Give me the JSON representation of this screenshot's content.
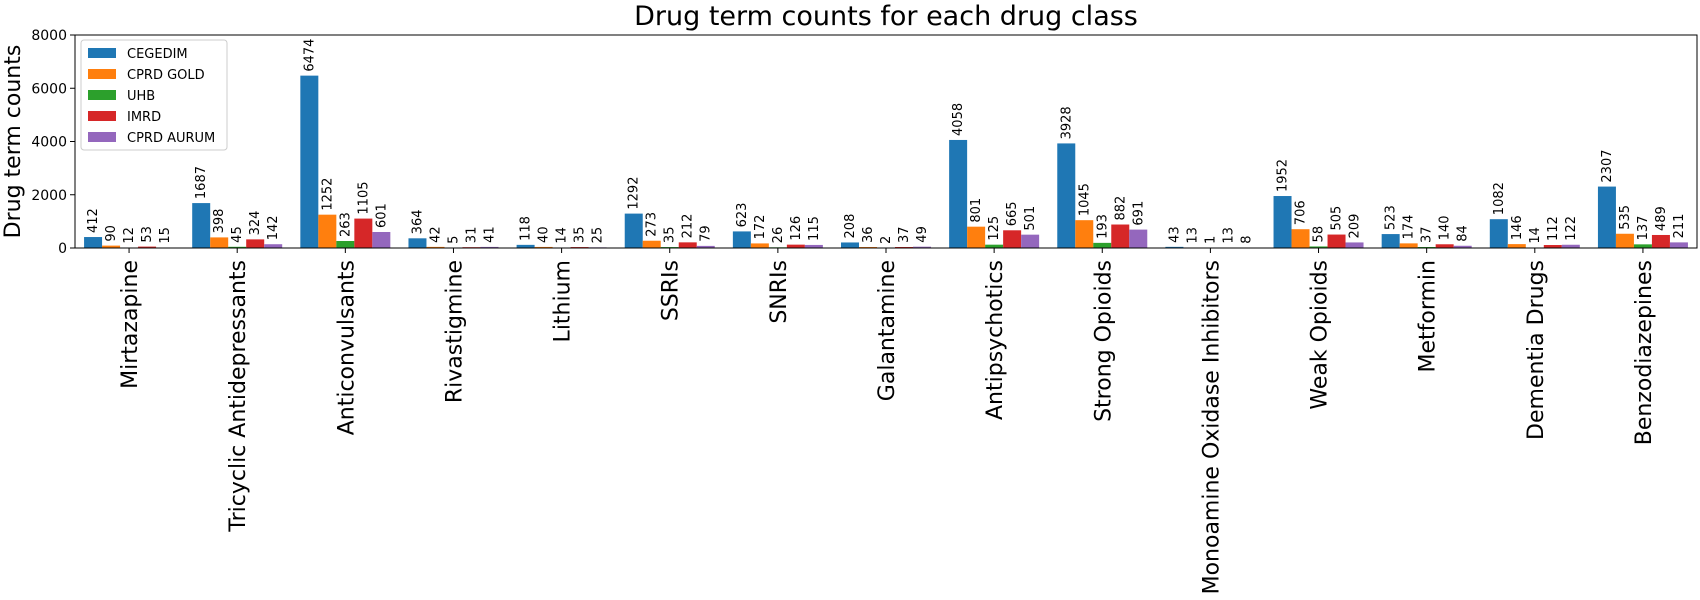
{
  "chart_data": {
    "type": "bar",
    "title": "Drug term counts for each drug class",
    "xlabel": "",
    "ylabel": "Drug term counts",
    "ylim": [
      0,
      8000
    ],
    "yticks": [
      0,
      2000,
      4000,
      6000,
      8000
    ],
    "grid": false,
    "legend_position": "top-left",
    "categories": [
      "Mirtazapine",
      "Tricyclic Antidepressants",
      "Anticonvulsants",
      "Rivastigmine",
      "Lithium",
      "SSRIs",
      "SNRIs",
      "Galantamine",
      "Antipsychotics",
      "Strong Opioids",
      "Monoamine Oxidase Inhibitors",
      "Weak Opioids",
      "Metformin",
      "Dementia Drugs",
      "Benzodiazepines"
    ],
    "series": [
      {
        "name": "CEGEDIM",
        "color": "#1f77b4",
        "values": [
          412,
          1687,
          6474,
          364,
          118,
          1292,
          623,
          208,
          4058,
          3928,
          43,
          1952,
          523,
          1082,
          2307
        ]
      },
      {
        "name": "CPRD GOLD",
        "color": "#ff7f0e",
        "values": [
          90,
          398,
          1252,
          42,
          40,
          273,
          172,
          36,
          801,
          1045,
          13,
          706,
          174,
          146,
          535
        ]
      },
      {
        "name": "UHB",
        "color": "#2ca02c",
        "values": [
          12,
          45,
          263,
          5,
          14,
          35,
          26,
          2,
          125,
          193,
          1,
          58,
          37,
          14,
          137
        ]
      },
      {
        "name": "IMRD",
        "color": "#d62728",
        "values": [
          53,
          324,
          1105,
          31,
          35,
          212,
          126,
          37,
          665,
          882,
          13,
          505,
          140,
          112,
          489
        ]
      },
      {
        "name": "CPRD AURUM",
        "color": "#9467bd",
        "values": [
          15,
          142,
          601,
          41,
          25,
          79,
          115,
          49,
          501,
          691,
          8,
          209,
          84,
          122,
          211
        ]
      }
    ]
  }
}
